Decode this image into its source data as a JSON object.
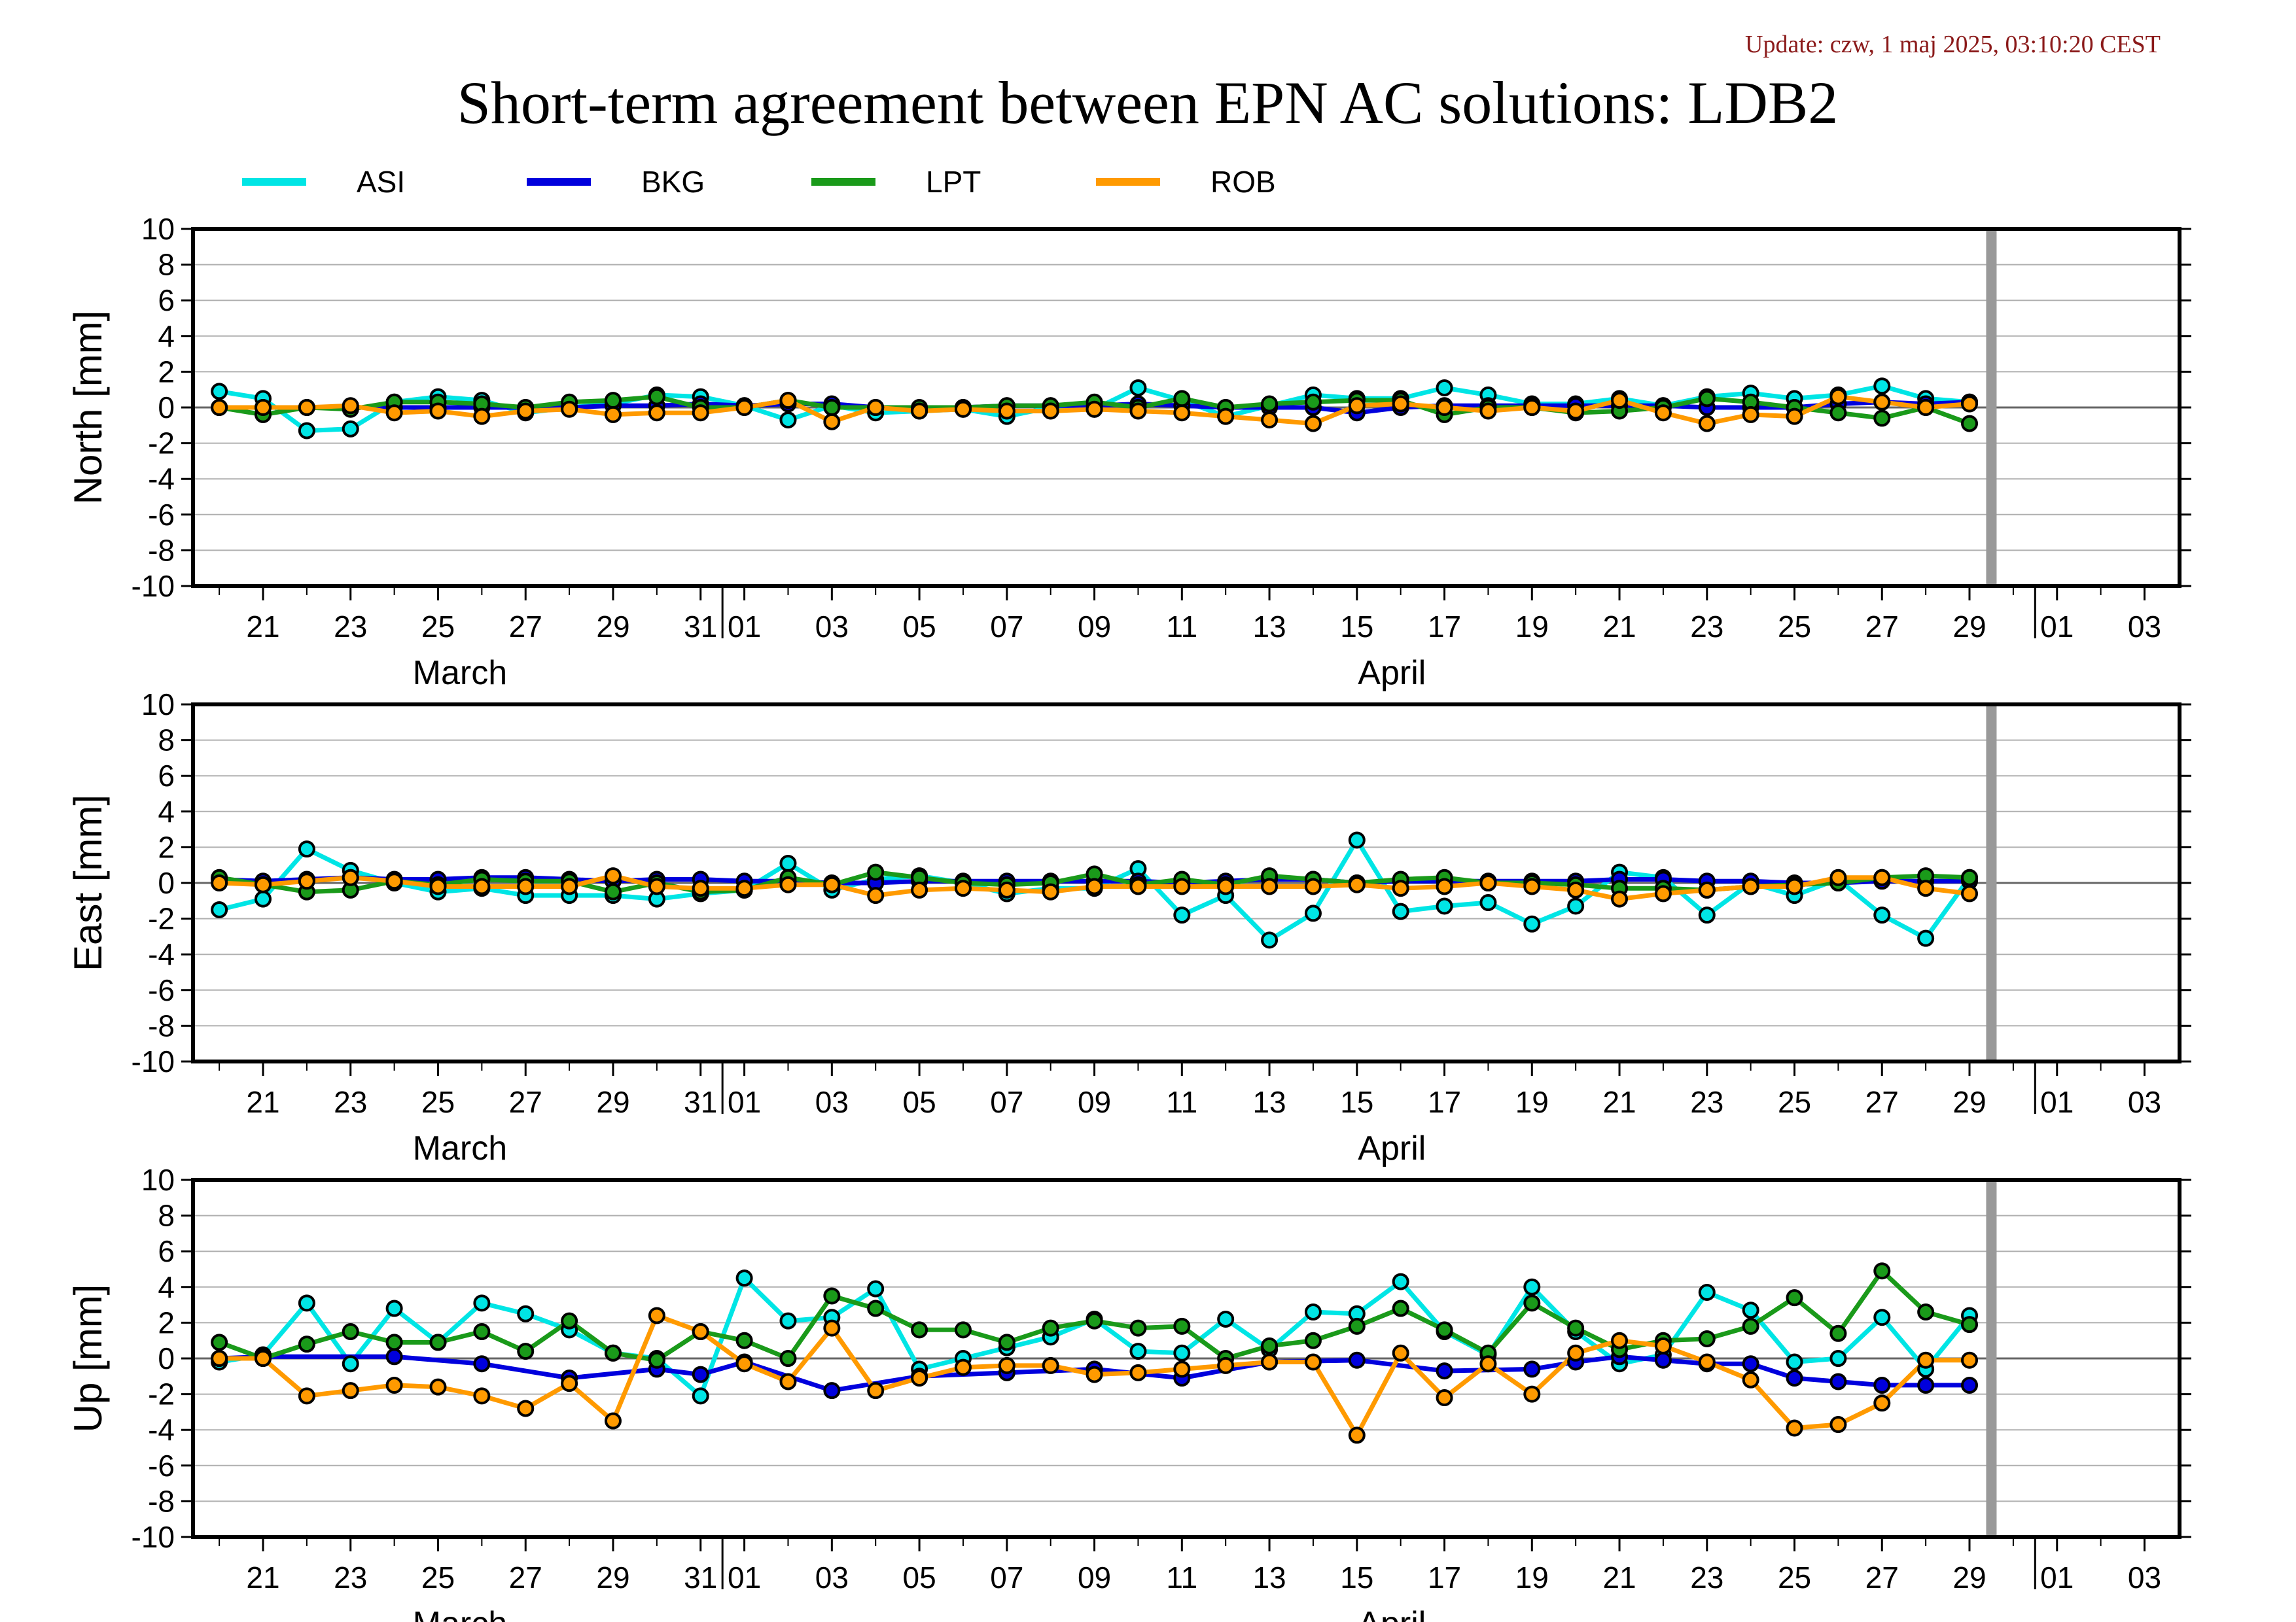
{
  "header": {
    "update": "Update: czw, 1 maj 2025, 03:10:20 CEST",
    "title": "Short-term agreement between EPN AC solutions: LDB2"
  },
  "legend": [
    {
      "name": "ASI",
      "color": "#00e5e5"
    },
    {
      "name": "BKG",
      "color": "#0000dd"
    },
    {
      "name": "LPT",
      "color": "#1a9a1a"
    },
    {
      "name": "ROB",
      "color": "#ff9a00"
    }
  ],
  "x_axis": {
    "tick_labels": [
      "21",
      "23",
      "25",
      "27",
      "29",
      "31",
      "01",
      "03",
      "05",
      "07",
      "09",
      "11",
      "13",
      "15",
      "17",
      "19",
      "21",
      "23",
      "25",
      "27",
      "29",
      "01",
      "03"
    ],
    "tick_days": [
      1,
      3,
      5,
      7,
      9,
      11,
      12,
      14,
      16,
      18,
      20,
      22,
      24,
      26,
      28,
      30,
      32,
      34,
      36,
      38,
      40,
      42,
      44
    ],
    "month_labels": [
      {
        "text": "March",
        "day": 5.5
      },
      {
        "text": "April",
        "day": 26.8
      }
    ],
    "month_boundaries": [
      12,
      42
    ],
    "day_range": [
      -0.6,
      44.8
    ],
    "today_marker_day": 40.5,
    "today_marker_color": "#999999"
  },
  "chart_data": [
    {
      "type": "line",
      "ylabel": "North [mm]",
      "ylim": [
        -10,
        10
      ],
      "y_ticks": [
        10,
        8,
        6,
        4,
        2,
        0,
        -2,
        -4,
        -6,
        -8,
        -10
      ],
      "grid": true,
      "series": [
        {
          "name": "ASI",
          "x": [
            0,
            1,
            2,
            3,
            4,
            5,
            6,
            7,
            8,
            9,
            10,
            11,
            12,
            13,
            14,
            15,
            16,
            17,
            18,
            19,
            20,
            21,
            22,
            23,
            24,
            25,
            26,
            27,
            28,
            29,
            30,
            31,
            32,
            33,
            34,
            35,
            36,
            37,
            38,
            39,
            40
          ],
          "y": [
            0.9,
            0.5,
            -1.3,
            -1.2,
            0.3,
            0.6,
            0.4,
            -0.3,
            0,
            0.2,
            0.7,
            0.6,
            0.1,
            -0.7,
            0.1,
            -0.3,
            -0.2,
            -0.1,
            -0.5,
            0,
            -0.1,
            1.1,
            0.4,
            -0.5,
            0.1,
            0.7,
            0.5,
            0.5,
            1.1,
            0.7,
            0.2,
            0.2,
            0.5,
            0.1,
            0.6,
            0.8,
            0.5,
            0.7,
            1.2,
            0.5,
            0.3
          ]
        },
        {
          "name": "BKG",
          "x": [
            0,
            1,
            2,
            3,
            4,
            5,
            6,
            7,
            8,
            9,
            10,
            11,
            12,
            13,
            14,
            15,
            16,
            17,
            18,
            19,
            20,
            21,
            22,
            23,
            24,
            25,
            26,
            27,
            28,
            29,
            30,
            31,
            32,
            33,
            34,
            35,
            36,
            37,
            38,
            39,
            40
          ],
          "y": [
            0,
            0,
            0,
            0,
            0,
            0,
            0,
            0,
            0,
            0.1,
            0.1,
            0.2,
            0.1,
            0.2,
            0.2,
            0,
            -0.1,
            0,
            0.1,
            0.1,
            0.1,
            0.2,
            0.1,
            0,
            0,
            0,
            -0.3,
            0,
            0.1,
            0.1,
            0.1,
            0.1,
            0.1,
            0.1,
            0,
            0,
            0,
            0.2,
            0.3,
            0.2,
            0.3
          ]
        },
        {
          "name": "LPT",
          "x": [
            0,
            1,
            2,
            3,
            4,
            5,
            6,
            7,
            8,
            9,
            10,
            11,
            12,
            13,
            14,
            15,
            16,
            17,
            18,
            19,
            20,
            21,
            22,
            23,
            24,
            25,
            26,
            27,
            28,
            29,
            30,
            31,
            32,
            33,
            34,
            35,
            36,
            37,
            38,
            39,
            40
          ],
          "y": [
            0,
            -0.4,
            0,
            -0.1,
            0.3,
            0.3,
            0.2,
            0,
            0.3,
            0.4,
            0.6,
            0,
            0,
            0.4,
            0,
            0,
            0,
            0,
            0.1,
            0.1,
            0.3,
            0,
            0.5,
            0,
            0.2,
            0.3,
            0.4,
            0.4,
            -0.4,
            0,
            0,
            -0.3,
            -0.2,
            0,
            0.5,
            0.3,
            0,
            -0.3,
            -0.6,
            0,
            -0.9
          ]
        },
        {
          "name": "ROB",
          "x": [
            0,
            1,
            2,
            3,
            4,
            5,
            6,
            7,
            8,
            9,
            10,
            11,
            12,
            13,
            14,
            15,
            16,
            17,
            18,
            19,
            20,
            21,
            22,
            23,
            24,
            25,
            26,
            27,
            28,
            29,
            30,
            31,
            32,
            33,
            34,
            35,
            36,
            37,
            38,
            39,
            40
          ],
          "y": [
            0,
            0,
            0,
            0.1,
            -0.3,
            -0.2,
            -0.5,
            -0.2,
            -0.1,
            -0.4,
            -0.3,
            -0.3,
            0,
            0.4,
            -0.8,
            0,
            -0.2,
            -0.1,
            -0.2,
            -0.2,
            -0.1,
            -0.2,
            -0.3,
            -0.5,
            -0.7,
            -0.9,
            0.1,
            0.2,
            0,
            -0.2,
            0,
            -0.2,
            0.4,
            -0.3,
            -0.9,
            -0.4,
            -0.5,
            0.6,
            0.3,
            0,
            0.2
          ]
        }
      ]
    },
    {
      "type": "line",
      "ylabel": "East [mm]",
      "ylim": [
        -10,
        10
      ],
      "y_ticks": [
        10,
        8,
        6,
        4,
        2,
        0,
        -2,
        -4,
        -6,
        -8,
        -10
      ],
      "grid": true,
      "series": [
        {
          "name": "ASI",
          "x": [
            0,
            1,
            2,
            3,
            4,
            5,
            6,
            7,
            8,
            9,
            10,
            11,
            12,
            13,
            14,
            15,
            16,
            17,
            18,
            19,
            20,
            21,
            22,
            23,
            24,
            25,
            26,
            27,
            28,
            29,
            30,
            31,
            32,
            33,
            34,
            35,
            36,
            37,
            38,
            39,
            40
          ],
          "y": [
            -1.5,
            -0.9,
            1.9,
            0.7,
            0,
            -0.5,
            -0.3,
            -0.7,
            -0.7,
            -0.7,
            -0.9,
            -0.6,
            -0.4,
            1.1,
            -0.4,
            0.2,
            0.4,
            0,
            -0.6,
            -0.3,
            -0.3,
            0.8,
            -1.8,
            -0.7,
            -3.2,
            -1.7,
            2.4,
            -1.6,
            -1.3,
            -1.1,
            -2.3,
            -1.3,
            0.6,
            0.3,
            -1.8,
            0,
            -0.7,
            0.2,
            -1.8,
            -3.1,
            0.3
          ]
        },
        {
          "name": "BKG",
          "x": [
            0,
            1,
            2,
            3,
            4,
            5,
            6,
            7,
            8,
            9,
            10,
            11,
            12,
            13,
            14,
            15,
            16,
            17,
            18,
            19,
            20,
            21,
            22,
            23,
            24,
            25,
            26,
            27,
            28,
            29,
            30,
            31,
            32,
            33,
            34,
            35,
            36,
            37,
            38,
            39,
            40
          ],
          "y": [
            0.2,
            0.1,
            0.2,
            0.3,
            0.2,
            0.2,
            0.3,
            0.3,
            0.2,
            0.1,
            0.2,
            0.2,
            0.1,
            0.1,
            0,
            0,
            0.1,
            0.1,
            0.1,
            0.1,
            0.1,
            0.1,
            0,
            0.1,
            0.2,
            0.2,
            0,
            0.1,
            0.1,
            0.1,
            0.1,
            0.1,
            0.2,
            0.2,
            0.1,
            0.1,
            0,
            0,
            0.1,
            0.1,
            0.1
          ]
        },
        {
          "name": "LPT",
          "x": [
            0,
            1,
            2,
            3,
            4,
            5,
            6,
            7,
            8,
            9,
            10,
            11,
            12,
            13,
            14,
            15,
            16,
            17,
            18,
            19,
            20,
            21,
            22,
            23,
            24,
            25,
            26,
            27,
            28,
            29,
            30,
            31,
            32,
            33,
            34,
            35,
            36,
            37,
            38,
            39,
            40
          ],
          "y": [
            0.3,
            -0.1,
            -0.5,
            -0.4,
            0.1,
            -0.1,
            0.2,
            0.1,
            0.1,
            -0.5,
            0,
            -0.5,
            -0.4,
            0.3,
            -0.1,
            0.6,
            0.3,
            0,
            -0.1,
            0,
            0.5,
            -0.1,
            0.2,
            -0.1,
            0.4,
            0.2,
            0,
            0.2,
            0.3,
            0,
            0,
            -0.1,
            -0.3,
            -0.3,
            -0.4,
            -0.2,
            -0.1,
            0,
            0.3,
            0.4,
            0.3
          ]
        },
        {
          "name": "ROB",
          "x": [
            0,
            1,
            2,
            3,
            4,
            5,
            6,
            7,
            8,
            9,
            10,
            11,
            12,
            13,
            14,
            15,
            16,
            17,
            18,
            19,
            20,
            21,
            22,
            23,
            24,
            25,
            26,
            27,
            28,
            29,
            30,
            31,
            32,
            33,
            34,
            35,
            36,
            37,
            38,
            39,
            40
          ],
          "y": [
            0,
            -0.1,
            0.1,
            0.3,
            0.1,
            -0.2,
            -0.2,
            -0.2,
            -0.2,
            0.4,
            -0.2,
            -0.3,
            -0.3,
            -0.1,
            -0.1,
            -0.7,
            -0.4,
            -0.3,
            -0.4,
            -0.5,
            -0.2,
            -0.2,
            -0.2,
            -0.2,
            -0.2,
            -0.2,
            -0.1,
            -0.3,
            -0.2,
            0,
            -0.2,
            -0.4,
            -0.9,
            -0.6,
            -0.4,
            -0.2,
            -0.2,
            0.3,
            0.3,
            -0.3,
            -0.6
          ]
        }
      ]
    },
    {
      "type": "line",
      "ylabel": "Up [mm]",
      "ylim": [
        -10,
        10
      ],
      "y_ticks": [
        10,
        8,
        6,
        4,
        2,
        0,
        -2,
        -4,
        -6,
        -8,
        -10
      ],
      "grid": true,
      "series": [
        {
          "name": "ASI",
          "x": [
            0,
            1,
            2,
            3,
            4,
            5,
            6,
            7,
            8,
            9,
            10,
            11,
            12,
            13,
            14,
            15,
            16,
            17,
            18,
            19,
            20,
            21,
            22,
            23,
            24,
            25,
            26,
            27,
            28,
            29,
            30,
            31,
            32,
            33,
            34,
            35,
            36,
            37,
            38,
            39,
            40
          ],
          "y": [
            -0.2,
            0.2,
            3.1,
            -0.3,
            2.8,
            0.9,
            3.1,
            2.5,
            1.6,
            0.3,
            0,
            -2.1,
            4.5,
            2.1,
            2.3,
            3.9,
            -0.6,
            0,
            0.6,
            1.2,
            2.2,
            0.4,
            0.3,
            2.2,
            0.5,
            2.6,
            2.5,
            4.3,
            1.5,
            0.2,
            4,
            1.5,
            -0.3,
            0.2,
            3.7,
            2.7,
            -0.2,
            0,
            2.3,
            -0.6,
            2.4
          ]
        },
        {
          "name": "BKG",
          "x": [
            0,
            1,
            4,
            6,
            8,
            10,
            11,
            12,
            14,
            16,
            18,
            20,
            22,
            24,
            26,
            28,
            30,
            31,
            32,
            33,
            34,
            35,
            36,
            37,
            38,
            39,
            40
          ],
          "y": [
            0,
            0.1,
            0.1,
            -0.3,
            -1.1,
            -0.6,
            -0.9,
            -0.2,
            -1.8,
            -1.0,
            -0.8,
            -0.6,
            -1.1,
            -0.2,
            -0.1,
            -0.7,
            -0.6,
            -0.2,
            0.1,
            -0.1,
            -0.3,
            -0.3,
            -1.1,
            -1.3,
            -1.5,
            -1.5,
            -1.5
          ]
        },
        {
          "name": "LPT",
          "x": [
            0,
            1,
            2,
            3,
            4,
            5,
            6,
            7,
            8,
            9,
            10,
            11,
            12,
            13,
            14,
            15,
            16,
            17,
            18,
            19,
            20,
            21,
            22,
            23,
            24,
            25,
            26,
            27,
            28,
            29,
            30,
            31,
            32,
            33,
            34,
            35,
            36,
            37,
            38,
            39,
            40
          ],
          "y": [
            0.9,
            0,
            0.8,
            1.5,
            0.9,
            0.9,
            1.5,
            0.4,
            2.1,
            0.3,
            -0.1,
            1.5,
            1.0,
            0,
            3.5,
            2.8,
            1.6,
            1.6,
            0.9,
            1.7,
            2.1,
            1.7,
            1.8,
            0,
            0.7,
            1.0,
            1.8,
            2.8,
            1.6,
            0.3,
            3.1,
            1.7,
            0.5,
            1.0,
            1.1,
            1.8,
            3.4,
            1.4,
            4.9,
            2.6,
            1.9
          ]
        },
        {
          "name": "ROB",
          "x": [
            0,
            1,
            2,
            3,
            4,
            5,
            6,
            7,
            8,
            9,
            10,
            11,
            12,
            13,
            14,
            15,
            16,
            17,
            18,
            19,
            20,
            21,
            22,
            23,
            24,
            25,
            26,
            27,
            28,
            29,
            30,
            31,
            32,
            33,
            34,
            35,
            36,
            37,
            38,
            39,
            40
          ],
          "y": [
            0,
            0,
            -2.1,
            -1.8,
            -1.5,
            -1.6,
            -2.1,
            -2.8,
            -1.4,
            -3.5,
            2.4,
            1.5,
            -0.3,
            -1.3,
            1.7,
            -1.8,
            -1.1,
            -0.5,
            -0.4,
            -0.4,
            -0.9,
            -0.8,
            -0.6,
            -0.4,
            -0.2,
            -0.2,
            -4.3,
            0.3,
            -2.2,
            -0.3,
            -2.0,
            0.3,
            1.0,
            0.7,
            -0.2,
            -1.2,
            -3.9,
            -3.7,
            -2.5,
            -0.1,
            -0.1
          ]
        }
      ]
    }
  ]
}
